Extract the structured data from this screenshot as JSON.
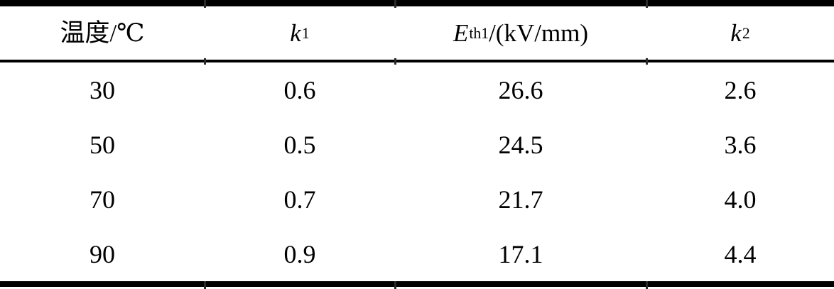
{
  "table": {
    "headers": [
      {
        "text": "温度/℃"
      },
      {
        "base": "k",
        "sub": "1",
        "rest": ""
      },
      {
        "base": "E",
        "sub": "th1",
        "rest": "/(kV/mm)"
      },
      {
        "base": "k",
        "sub": "2",
        "rest": ""
      }
    ],
    "rows": [
      [
        "30",
        "0.6",
        "26.6",
        "2.6"
      ],
      [
        "50",
        "0.5",
        "24.5",
        "3.6"
      ],
      [
        "70",
        "0.7",
        "21.7",
        "4.0"
      ],
      [
        "90",
        "0.9",
        "17.1",
        "4.4"
      ]
    ]
  },
  "colors": {
    "text": "#000000",
    "background": "#ffffff",
    "rule": "#000000"
  },
  "chart_data": {
    "type": "table",
    "title": "",
    "columns": [
      "温度/℃",
      "k1",
      "Eth1/(kV/mm)",
      "k2"
    ],
    "rows": [
      [
        30,
        0.6,
        26.6,
        2.6
      ],
      [
        50,
        0.5,
        24.5,
        3.6
      ],
      [
        70,
        0.7,
        21.7,
        4.0
      ],
      [
        90,
        0.9,
        17.1,
        4.4
      ]
    ]
  }
}
